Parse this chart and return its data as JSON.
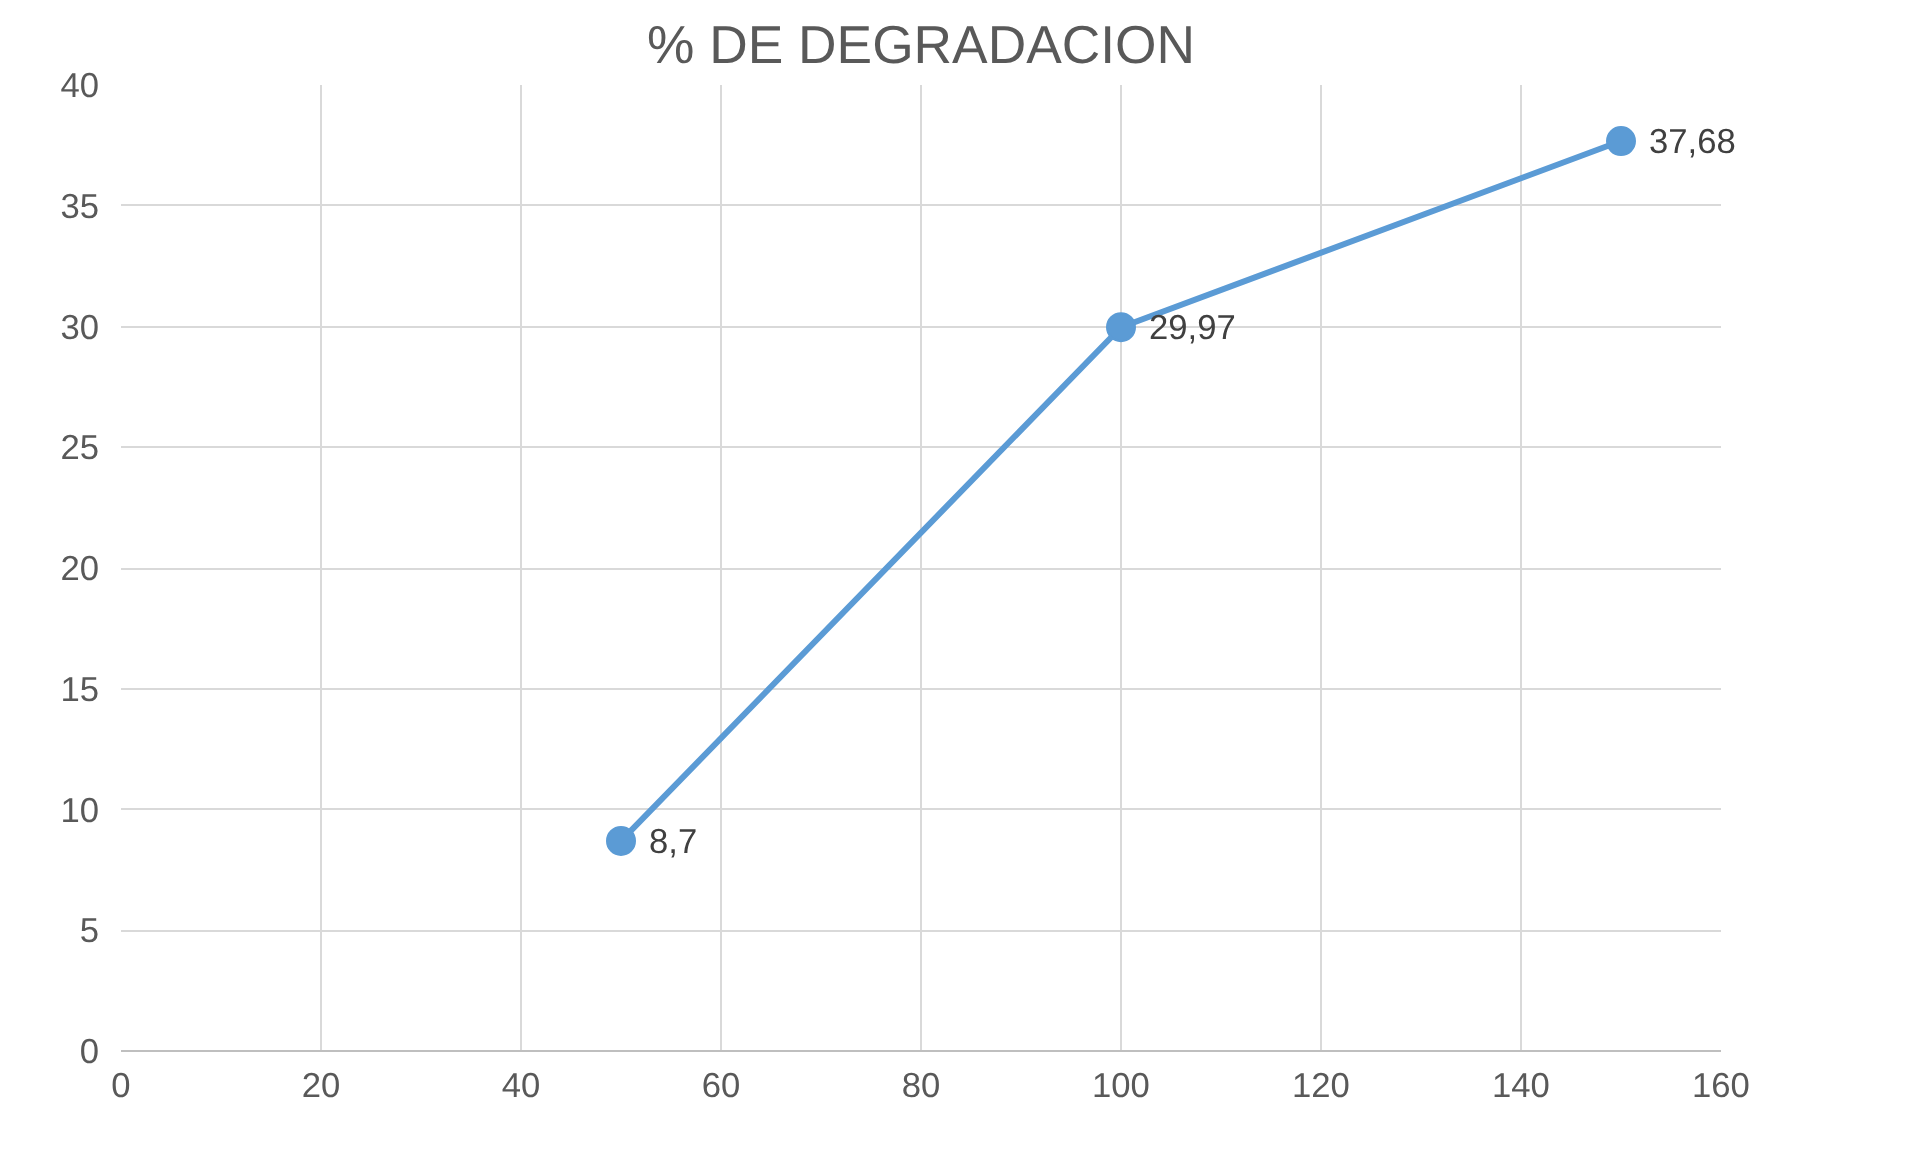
{
  "chart_data": {
    "type": "line",
    "title": "% DE DEGRADACION",
    "x": [
      50,
      100,
      150
    ],
    "series": [
      {
        "color": "#5b9bd5",
        "values": [
          8.7,
          29.97,
          37.68
        ],
        "value_labels": [
          "8,7",
          "29,97",
          "37,68"
        ]
      }
    ],
    "xlim": [
      0,
      160
    ],
    "xticks": [
      0,
      20,
      40,
      60,
      80,
      100,
      120,
      140,
      160
    ],
    "ylim": [
      0,
      40
    ],
    "yticks": [
      0,
      5,
      10,
      15,
      20,
      25,
      30,
      35,
      40
    ],
    "grid": true,
    "marker": "circle",
    "line_style": "solid"
  }
}
